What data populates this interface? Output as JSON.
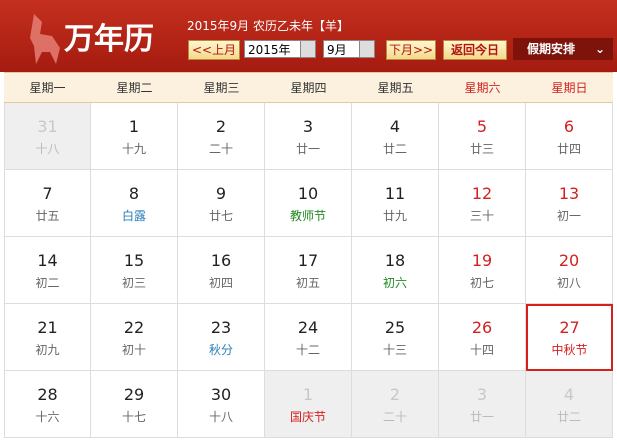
{
  "header": {
    "logo": "万年历",
    "date_label": "2015年9月 农历乙未年【羊】",
    "prev": "<<上月",
    "year": "2015年",
    "month": "9月",
    "next": "下月>>",
    "today": "返回今日",
    "holidays": "假期安排"
  },
  "weekdays": [
    "星期一",
    "星期二",
    "星期三",
    "星期四",
    "星期五",
    "星期六",
    "星期日"
  ],
  "weeks": [
    [
      {
        "day": 31,
        "lunar": "十八",
        "muted": true
      },
      {
        "day": 1,
        "lunar": "十九"
      },
      {
        "day": 2,
        "lunar": "二十"
      },
      {
        "day": 3,
        "lunar": "廿一"
      },
      {
        "day": 4,
        "lunar": "廿二"
      },
      {
        "day": 5,
        "lunar": "廿三"
      },
      {
        "day": 6,
        "lunar": "廿四"
      }
    ],
    [
      {
        "day": 7,
        "lunar": "廿五"
      },
      {
        "day": 8,
        "lunar": "白露",
        "color": "#2a7fb8"
      },
      {
        "day": 9,
        "lunar": "廿七"
      },
      {
        "day": 10,
        "lunar": "教师节",
        "color": "#1f8a1f"
      },
      {
        "day": 11,
        "lunar": "廿九"
      },
      {
        "day": 12,
        "lunar": "三十"
      },
      {
        "day": 13,
        "lunar": "初一"
      }
    ],
    [
      {
        "day": 14,
        "lunar": "初二"
      },
      {
        "day": 15,
        "lunar": "初三"
      },
      {
        "day": 16,
        "lunar": "初四"
      },
      {
        "day": 17,
        "lunar": "初五"
      },
      {
        "day": 18,
        "lunar": "初六",
        "color": "#1f8a1f"
      },
      {
        "day": 19,
        "lunar": "初七"
      },
      {
        "day": 20,
        "lunar": "初八"
      }
    ],
    [
      {
        "day": 21,
        "lunar": "初九"
      },
      {
        "day": 22,
        "lunar": "初十"
      },
      {
        "day": 23,
        "lunar": "秋分",
        "color": "#2a7fb8"
      },
      {
        "day": 24,
        "lunar": "十二"
      },
      {
        "day": 25,
        "lunar": "十三"
      },
      {
        "day": 26,
        "lunar": "十四"
      },
      {
        "day": 27,
        "lunar": "中秋节",
        "color": "#d42020",
        "selected": true
      }
    ],
    [
      {
        "day": 28,
        "lunar": "十六"
      },
      {
        "day": 29,
        "lunar": "十七"
      },
      {
        "day": 30,
        "lunar": "十八"
      },
      {
        "day": 1,
        "lunar": "国庆节",
        "color": "#d42020",
        "muted": true
      },
      {
        "day": 2,
        "lunar": "二十",
        "muted": true
      },
      {
        "day": 3,
        "lunar": "廿一",
        "muted": true
      },
      {
        "day": 4,
        "lunar": "廿二",
        "muted": true
      }
    ]
  ]
}
